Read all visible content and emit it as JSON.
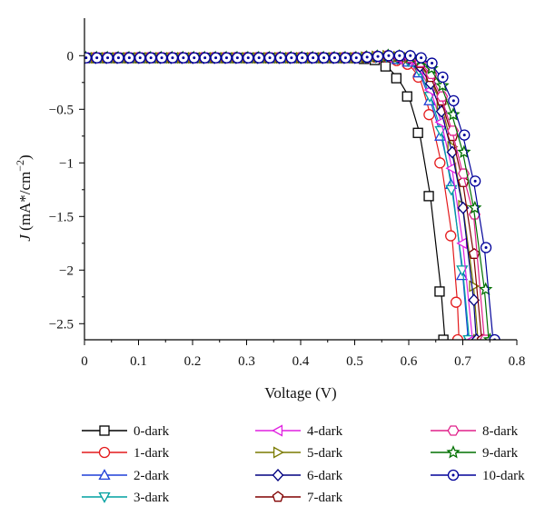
{
  "chart_data": {
    "type": "line",
    "xlabel": "Voltage (V)",
    "ylabel": "J (mA*/cm−2)",
    "ylabel_parts": {
      "symbol": "J",
      "unit_open": " (mA*/cm",
      "exponent": "−2",
      "unit_close": ")"
    },
    "xlim": [
      0,
      0.8
    ],
    "ylim": [
      -2.65,
      0.35
    ],
    "xticks": [
      0,
      0.1,
      0.2,
      0.3,
      0.4,
      0.5,
      0.6,
      0.7,
      0.8
    ],
    "xtick_labels": [
      "0",
      "0.1",
      "0.2",
      "0.3",
      "0.4",
      "0.5",
      "0.6",
      "0.7",
      "0.8"
    ],
    "yticks": [
      0,
      -0.5,
      -1,
      -1.5,
      -2,
      -2.5
    ],
    "ytick_labels": [
      "0",
      "−0.5",
      "−1",
      "−1.5",
      "−2",
      "−2.5"
    ],
    "grid": false,
    "legend_position": "bottom",
    "series": [
      {
        "name": "0-dark",
        "color": "#000000",
        "marker": "square",
        "x": [
          0,
          0.1,
          0.2,
          0.3,
          0.4,
          0.5,
          0.54,
          0.56,
          0.58,
          0.6,
          0.62,
          0.64,
          0.66,
          0.667
        ],
        "y": [
          -0.02,
          -0.02,
          -0.02,
          -0.02,
          -0.02,
          -0.02,
          -0.04,
          -0.1,
          -0.21,
          -0.38,
          -0.72,
          -1.31,
          -2.2,
          -2.65
        ]
      },
      {
        "name": "1-dark",
        "color": "#e41a1c",
        "marker": "circle",
        "x": [
          0,
          0.1,
          0.2,
          0.3,
          0.4,
          0.5,
          0.56,
          0.6,
          0.62,
          0.64,
          0.66,
          0.68,
          0.69,
          0.693
        ],
        "y": [
          -0.02,
          -0.02,
          -0.02,
          -0.02,
          -0.02,
          -0.02,
          -0.01,
          -0.08,
          -0.2,
          -0.55,
          -1.0,
          -1.68,
          -2.3,
          -2.65
        ]
      },
      {
        "name": "2-dark",
        "color": "#1f3fd8",
        "marker": "triangle-up",
        "x": [
          0,
          0.1,
          0.2,
          0.3,
          0.4,
          0.5,
          0.56,
          0.6,
          0.62,
          0.64,
          0.66,
          0.68,
          0.7,
          0.71
        ],
        "y": [
          -0.02,
          -0.02,
          -0.02,
          -0.02,
          -0.02,
          -0.02,
          -0.01,
          -0.06,
          -0.16,
          -0.42,
          -0.75,
          -1.2,
          -2.05,
          -2.65
        ]
      },
      {
        "name": "3-dark",
        "color": "#00a0a0",
        "marker": "triangle-down",
        "x": [
          0,
          0.1,
          0.2,
          0.3,
          0.4,
          0.5,
          0.56,
          0.6,
          0.62,
          0.64,
          0.66,
          0.68,
          0.7,
          0.712
        ],
        "y": [
          -0.02,
          -0.02,
          -0.02,
          -0.02,
          -0.02,
          -0.02,
          -0.01,
          -0.05,
          -0.14,
          -0.38,
          -0.7,
          -1.25,
          -2.0,
          -2.65
        ]
      },
      {
        "name": "4-dark",
        "color": "#e020e0",
        "marker": "triangle-left",
        "x": [
          0,
          0.1,
          0.2,
          0.3,
          0.4,
          0.5,
          0.56,
          0.6,
          0.62,
          0.64,
          0.66,
          0.68,
          0.7,
          0.718
        ],
        "y": [
          -0.02,
          -0.02,
          -0.02,
          -0.02,
          -0.02,
          -0.02,
          -0.01,
          -0.04,
          -0.12,
          -0.32,
          -0.62,
          -1.05,
          -1.75,
          -2.65
        ]
      },
      {
        "name": "5-dark",
        "color": "#7a7a00",
        "marker": "triangle-right",
        "x": [
          0,
          0.1,
          0.2,
          0.3,
          0.4,
          0.5,
          0.56,
          0.6,
          0.62,
          0.64,
          0.66,
          0.68,
          0.7,
          0.72,
          0.728
        ],
        "y": [
          -0.02,
          -0.02,
          -0.02,
          -0.02,
          -0.02,
          -0.02,
          0.0,
          -0.02,
          -0.08,
          -0.22,
          -0.45,
          -0.85,
          -1.4,
          -2.15,
          -2.65
        ]
      },
      {
        "name": "6-dark",
        "color": "#000080",
        "marker": "diamond",
        "x": [
          0,
          0.1,
          0.2,
          0.3,
          0.4,
          0.5,
          0.56,
          0.6,
          0.62,
          0.64,
          0.66,
          0.68,
          0.7,
          0.72,
          0.725
        ],
        "y": [
          -0.02,
          -0.02,
          -0.02,
          -0.02,
          -0.02,
          -0.02,
          0.0,
          -0.03,
          -0.1,
          -0.26,
          -0.52,
          -0.9,
          -1.42,
          -2.28,
          -2.65
        ]
      },
      {
        "name": "7-dark",
        "color": "#800000",
        "marker": "pentagon",
        "x": [
          0,
          0.1,
          0.2,
          0.3,
          0.4,
          0.5,
          0.56,
          0.6,
          0.62,
          0.64,
          0.66,
          0.68,
          0.7,
          0.72,
          0.735
        ],
        "y": [
          -0.02,
          -0.02,
          -0.02,
          -0.02,
          -0.02,
          -0.02,
          0.0,
          -0.02,
          -0.07,
          -0.2,
          -0.42,
          -0.75,
          -1.18,
          -1.85,
          -2.65
        ]
      },
      {
        "name": "8-dark",
        "color": "#e0208a",
        "marker": "hexagon",
        "x": [
          0,
          0.1,
          0.2,
          0.3,
          0.4,
          0.5,
          0.56,
          0.6,
          0.62,
          0.64,
          0.66,
          0.68,
          0.7,
          0.72,
          0.74
        ],
        "y": [
          -0.02,
          -0.02,
          -0.02,
          -0.02,
          -0.02,
          -0.02,
          0.0,
          -0.02,
          -0.06,
          -0.17,
          -0.38,
          -0.7,
          -1.1,
          -1.48,
          -2.65
        ]
      },
      {
        "name": "9-dark",
        "color": "#007000",
        "marker": "star",
        "x": [
          0,
          0.1,
          0.2,
          0.3,
          0.4,
          0.5,
          0.56,
          0.6,
          0.62,
          0.64,
          0.66,
          0.68,
          0.7,
          0.72,
          0.74,
          0.748
        ],
        "y": [
          -0.02,
          -0.02,
          -0.02,
          -0.02,
          -0.02,
          -0.02,
          0.0,
          -0.01,
          -0.04,
          -0.12,
          -0.28,
          -0.55,
          -0.9,
          -1.42,
          -2.18,
          -2.65
        ]
      },
      {
        "name": "10-dark",
        "color": "#000099",
        "marker": "circle-dot",
        "x": [
          0,
          0.1,
          0.2,
          0.3,
          0.4,
          0.5,
          0.56,
          0.6,
          0.62,
          0.64,
          0.66,
          0.68,
          0.7,
          0.72,
          0.74,
          0.756
        ],
        "y": [
          -0.02,
          -0.02,
          -0.02,
          -0.02,
          -0.02,
          -0.02,
          0.0,
          0.0,
          -0.02,
          -0.07,
          -0.2,
          -0.42,
          -0.74,
          -1.17,
          -1.79,
          -2.65
        ]
      }
    ]
  }
}
